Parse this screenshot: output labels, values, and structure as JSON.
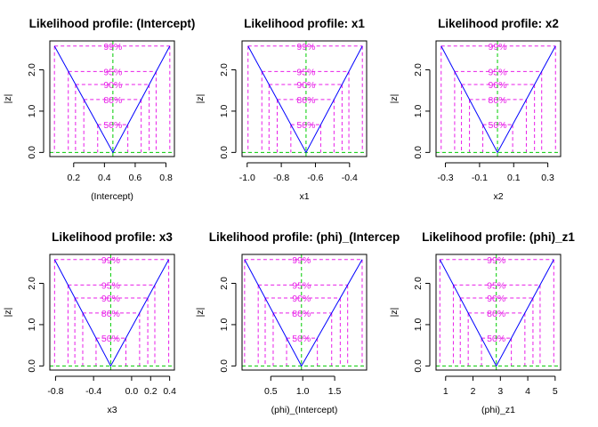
{
  "chart_data": [
    {
      "type": "line",
      "title": "Likelihood profile: (Intercept)",
      "xlabel": "(Intercept)",
      "ylabel": "|z|",
      "xlim": [
        0.045,
        0.855
      ],
      "ylim": [
        -0.1,
        2.7
      ],
      "xticks": [
        0.2,
        0.4,
        0.6,
        0.8
      ],
      "xtick_labels": [
        "0.2",
        "0.4",
        "0.6",
        "0.8"
      ],
      "yticks": [
        0.0,
        1.0,
        2.0
      ],
      "ytick_labels": [
        "0.0",
        "1.0",
        "2.0"
      ],
      "profile": {
        "x": [
          0.075,
          0.455,
          0.825
        ],
        "y": [
          2.576,
          0.0,
          2.576
        ]
      },
      "estimate": 0.455,
      "levels": [
        {
          "label": "50%",
          "z": 0.674,
          "lower": 0.356,
          "upper": 0.552
        },
        {
          "label": "80%",
          "z": 1.282,
          "lower": 0.266,
          "upper": 0.639
        },
        {
          "label": "90%",
          "z": 1.645,
          "lower": 0.212,
          "upper": 0.691
        },
        {
          "label": "95%",
          "z": 1.96,
          "lower": 0.165,
          "upper": 0.736
        },
        {
          "label": "99%",
          "z": 2.576,
          "lower": 0.075,
          "upper": 0.825
        }
      ]
    },
    {
      "type": "line",
      "title": "Likelihood profile: x1",
      "xlabel": "x1",
      "ylabel": "|z|",
      "xlim": [
        -1.03,
        -0.3
      ],
      "ylim": [
        -0.1,
        2.7
      ],
      "xticks": [
        -1.0,
        -0.8,
        -0.6,
        -0.4
      ],
      "xtick_labels": [
        "-1.0",
        "-0.8",
        "-0.6",
        "-0.4"
      ],
      "yticks": [
        0.0,
        1.0,
        2.0
      ],
      "ytick_labels": [
        "0.0",
        "1.0",
        "2.0"
      ],
      "profile": {
        "x": [
          -0.995,
          -0.655,
          -0.325
        ],
        "y": [
          2.576,
          0.0,
          2.576
        ]
      },
      "estimate": -0.655,
      "levels": [
        {
          "label": "50%",
          "z": 0.674,
          "lower": -0.744,
          "upper": -0.569
        },
        {
          "label": "80%",
          "z": 1.282,
          "lower": -0.824,
          "upper": -0.491
        },
        {
          "label": "90%",
          "z": 1.645,
          "lower": -0.872,
          "upper": -0.444
        },
        {
          "label": "95%",
          "z": 1.96,
          "lower": -0.914,
          "upper": -0.404
        },
        {
          "label": "99%",
          "z": 2.576,
          "lower": -0.995,
          "upper": -0.325
        }
      ]
    },
    {
      "type": "line",
      "title": "Likelihood profile: x2",
      "xlabel": "x2",
      "ylabel": "|z|",
      "xlim": [
        -0.355,
        0.375
      ],
      "ylim": [
        -0.1,
        2.7
      ],
      "xticks": [
        -0.3,
        -0.1,
        0.1,
        0.3
      ],
      "xtick_labels": [
        "-0.3",
        "-0.1",
        "0.1",
        "0.3"
      ],
      "yticks": [
        0.0,
        1.0,
        2.0
      ],
      "ytick_labels": [
        "0.0",
        "1.0",
        "2.0"
      ],
      "profile": {
        "x": [
          -0.325,
          0.005,
          0.345
        ],
        "y": [
          2.576,
          0.0,
          2.576
        ]
      },
      "estimate": 0.005,
      "levels": [
        {
          "label": "50%",
          "z": 0.674,
          "lower": -0.081,
          "upper": 0.094
        },
        {
          "label": "80%",
          "z": 1.282,
          "lower": -0.159,
          "upper": 0.174
        },
        {
          "label": "90%",
          "z": 1.645,
          "lower": -0.206,
          "upper": 0.222
        },
        {
          "label": "95%",
          "z": 1.96,
          "lower": -0.246,
          "upper": 0.264
        },
        {
          "label": "99%",
          "z": 2.576,
          "lower": -0.325,
          "upper": 0.345
        }
      ]
    },
    {
      "type": "line",
      "title": "Likelihood profile: x3",
      "xlabel": "x3",
      "ylabel": "|z|",
      "xlim": [
        -0.86,
        0.45
      ],
      "ylim": [
        -0.1,
        2.7
      ],
      "xticks": [
        -0.8,
        -0.4,
        0.0,
        0.2,
        0.4
      ],
      "xtick_labels": [
        "-0.8",
        "-0.4",
        "0.0",
        "0.2",
        "0.4"
      ],
      "yticks": [
        0.0,
        1.0,
        2.0
      ],
      "ytick_labels": [
        "0.0",
        "1.0",
        "2.0"
      ],
      "profile": {
        "x": [
          -0.81,
          -0.22,
          0.39
        ],
        "y": [
          2.576,
          0.0,
          2.576
        ]
      },
      "estimate": -0.22,
      "levels": [
        {
          "label": "50%",
          "z": 0.674,
          "lower": -0.374,
          "upper": -0.06
        },
        {
          "label": "80%",
          "z": 1.282,
          "lower": -0.514,
          "upper": 0.084
        },
        {
          "label": "90%",
          "z": 1.645,
          "lower": -0.597,
          "upper": 0.17
        },
        {
          "label": "95%",
          "z": 1.96,
          "lower": -0.669,
          "upper": 0.244
        },
        {
          "label": "99%",
          "z": 2.576,
          "lower": -0.81,
          "upper": 0.39
        }
      ]
    },
    {
      "type": "line",
      "title": "Likelihood profile: (phi)_(Intercep",
      "xlabel": "(phi)_(Intercept)",
      "ylabel": "|z|",
      "xlim": [
        0.05,
        2.0
      ],
      "ylim": [
        -0.1,
        2.7
      ],
      "xticks": [
        0.5,
        1.0,
        1.5
      ],
      "xtick_labels": [
        "0.5",
        "1.0",
        "1.5"
      ],
      "yticks": [
        0.0,
        1.0,
        2.0
      ],
      "ytick_labels": [
        "0.0",
        "1.0",
        "2.0"
      ],
      "profile": {
        "x": [
          0.09,
          0.98,
          1.93
        ],
        "y": [
          2.576,
          0.0,
          2.576
        ]
      },
      "estimate": 0.98,
      "levels": [
        {
          "label": "50%",
          "z": 0.674,
          "lower": 0.747,
          "upper": 1.229
        },
        {
          "label": "80%",
          "z": 1.282,
          "lower": 0.537,
          "upper": 1.453
        },
        {
          "label": "90%",
          "z": 1.645,
          "lower": 0.412,
          "upper": 1.587
        },
        {
          "label": "95%",
          "z": 1.96,
          "lower": 0.303,
          "upper": 1.703
        },
        {
          "label": "99%",
          "z": 2.576,
          "lower": 0.09,
          "upper": 1.93
        }
      ]
    },
    {
      "type": "line",
      "title": "Likelihood profile: (phi)_z1",
      "xlabel": "(phi)_z1",
      "ylabel": "|z|",
      "xlim": [
        0.65,
        5.2
      ],
      "ylim": [
        -0.1,
        2.7
      ],
      "xticks": [
        1,
        2,
        3,
        4,
        5
      ],
      "xtick_labels": [
        "1",
        "2",
        "3",
        "4",
        "5"
      ],
      "yticks": [
        0.0,
        1.0,
        2.0
      ],
      "ytick_labels": [
        "0.0",
        "1.0",
        "2.0"
      ],
      "profile": {
        "x": [
          0.79,
          2.85,
          4.95
        ],
        "y": [
          2.576,
          0.0,
          2.576
        ]
      },
      "estimate": 2.85,
      "levels": [
        {
          "label": "50%",
          "z": 0.674,
          "lower": 2.31,
          "upper": 3.4
        },
        {
          "label": "80%",
          "z": 1.282,
          "lower": 1.825,
          "upper": 3.895
        },
        {
          "label": "90%",
          "z": 1.645,
          "lower": 1.535,
          "upper": 4.19
        },
        {
          "label": "95%",
          "z": 1.96,
          "lower": 1.282,
          "upper": 4.45
        },
        {
          "label": "99%",
          "z": 2.576,
          "lower": 0.79,
          "upper": 4.95
        }
      ]
    }
  ],
  "colors": {
    "profile_line": "#0000ff",
    "level_lines": "#e81ee8",
    "estimate_lines": "#00cc00",
    "axes": "#000000"
  }
}
